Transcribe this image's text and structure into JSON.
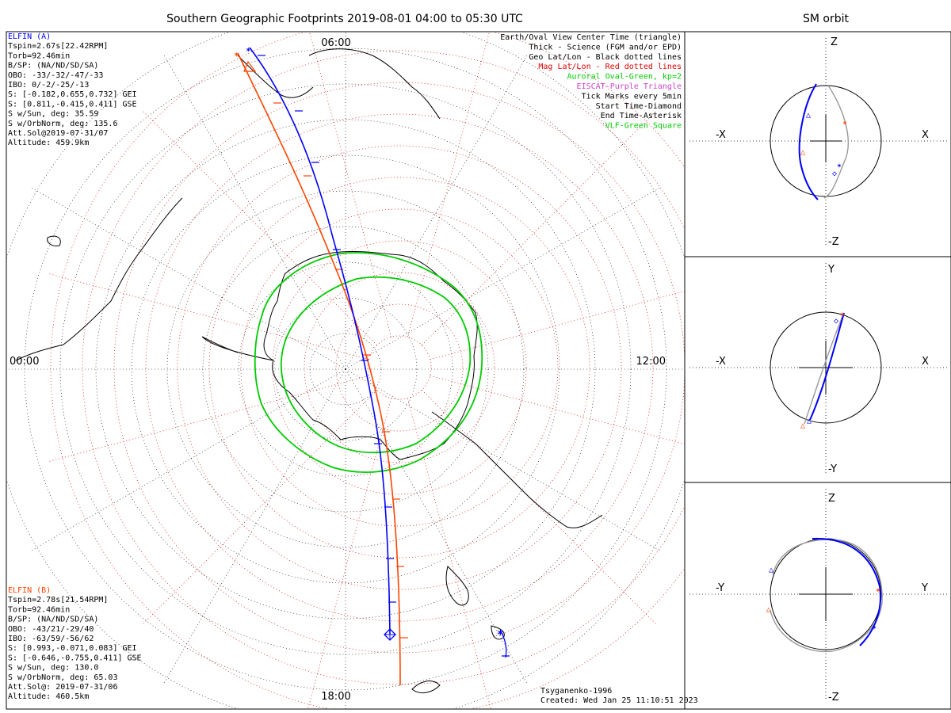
{
  "main_title": "Southern Geographic Footprints 2019-08-01 04:00 to 05:30 UTC",
  "side_title": "SM orbit",
  "colors": {
    "elfin_a": "#0000ff",
    "elfin_b": "#ff4400",
    "oval": "#00cc00",
    "mag_grid": "#dd0000",
    "eiscat": "#cc44cc",
    "vlf": "#00cc00"
  },
  "clock_labels": {
    "top": "06:00",
    "bottom": "18:00",
    "left": "00:00",
    "right": "12:00"
  },
  "elfin_a": {
    "lines": [
      "ELFIN (A)",
      "Tspin=2.67s[22.42RPM]",
      "Torb=92.46min",
      "B/SP: (NA/ND/SD/SA)",
      "OBO: -33/-32/-47/-33",
      "IBO: 0/-2/-25/-13",
      "S: [-0.182,0.655,0.732] GEI",
      "S: [0.811,-0.415,0.411] GSE",
      "S w/Sun, deg: 35.59",
      "S w/OrbNorm, deg: 135.6",
      "Att.Sol@2019-07-31/07",
      "Altitude: 459.9km"
    ]
  },
  "elfin_b": {
    "lines": [
      "ELFIN (B)",
      "Tspin=2.78s[21.54RPM]",
      "Torb=92.46min",
      "B/SP: (NA/ND/SD/SA)",
      "OBO: -43/21/-29/40",
      "IBO: -63/59/-56/62",
      "S: [0.993,-0.071,0.083] GEI",
      "S: [-0.646,-0.755,0.411] GSE",
      "S w/Sun, deg: 130.0",
      "S w/OrbNorm, deg: 65.03",
      "Att.Sol@: 2019-07-31/06",
      "Altitude: 460.5km"
    ]
  },
  "legend": [
    {
      "text": "Earth/Oval View Center Time (triangle)",
      "color": "#000000"
    },
    {
      "text": "Thick - Science (FGM and/or EPD)",
      "color": "#000000"
    },
    {
      "text": "Geo Lat/Lon - Black dotted lines",
      "color": "#000000"
    },
    {
      "text": "Mag Lat/Lon - Red dotted lines",
      "color": "#dd0000"
    },
    {
      "text": "Auroral Oval-Green, kp=2",
      "color": "#00cc00"
    },
    {
      "text": "EISCAT-Purple Triangle",
      "color": "#cc44cc"
    },
    {
      "text": "Tick Marks every 5min",
      "color": "#000000"
    },
    {
      "text": "Start Time-Diamond",
      "color": "#000000"
    },
    {
      "text": "End Time-Asterisk",
      "color": "#000000"
    },
    {
      "text": "VLF-Green Square",
      "color": "#00cc00"
    }
  ],
  "footer": {
    "model": "Tsyganenko-1996",
    "created": "Created: Wed Jan 25 11:10:51 2023"
  },
  "panels": {
    "xz": {
      "top": "Z",
      "bottom": "-Z",
      "left": "-X",
      "right": "X"
    },
    "xy": {
      "top": "Y",
      "bottom": "-Y",
      "left": "-X",
      "right": "X"
    },
    "yz": {
      "top": "Z",
      "bottom": "-Z",
      "left": "-Y",
      "right": "Y"
    }
  }
}
